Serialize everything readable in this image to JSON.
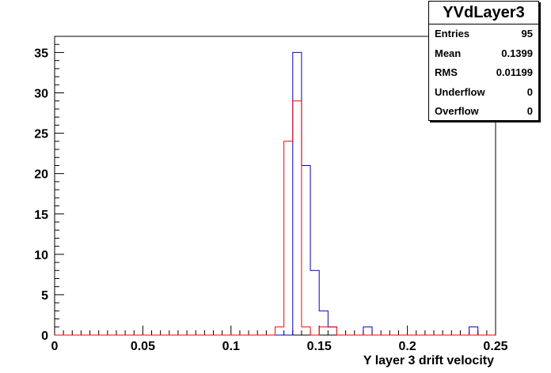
{
  "stats": {
    "title": "YVdLayer3",
    "rows": [
      {
        "label": "Entries",
        "value": "95"
      },
      {
        "label": "Mean",
        "value": "0.1399"
      },
      {
        "label": "RMS",
        "value": "0.01199"
      },
      {
        "label": "Underflow",
        "value": "0"
      },
      {
        "label": "Overflow",
        "value": "0"
      }
    ]
  },
  "chart_data": {
    "type": "histogram",
    "title": "",
    "xlabel": "Y layer 3 drift velocity",
    "ylabel": "",
    "xlim": [
      0,
      0.25
    ],
    "ylim": [
      0,
      37
    ],
    "bin_width": 0.005,
    "x_ticks": [
      "0",
      "0.05",
      "0.1",
      "0.15",
      "0.2",
      "0.25"
    ],
    "y_ticks": [
      "0",
      "5",
      "10",
      "15",
      "20",
      "25",
      "30",
      "35"
    ],
    "grid": false,
    "series": [
      {
        "color": "#0000cc",
        "bins": [
          {
            "x0": 0.135,
            "x1": 0.14,
            "y": 35
          },
          {
            "x0": 0.14,
            "x1": 0.145,
            "y": 21
          },
          {
            "x0": 0.145,
            "x1": 0.15,
            "y": 8
          },
          {
            "x0": 0.15,
            "x1": 0.155,
            "y": 3
          },
          {
            "x0": 0.155,
            "x1": 0.16,
            "y": 1
          },
          {
            "x0": 0.175,
            "x1": 0.18,
            "y": 1
          },
          {
            "x0": 0.235,
            "x1": 0.24,
            "y": 1
          }
        ]
      },
      {
        "color": "#ff0000",
        "bins": [
          {
            "x0": 0.125,
            "x1": 0.13,
            "y": 1
          },
          {
            "x0": 0.13,
            "x1": 0.135,
            "y": 24
          },
          {
            "x0": 0.135,
            "x1": 0.14,
            "y": 29
          },
          {
            "x0": 0.14,
            "x1": 0.145,
            "y": 1
          },
          {
            "x0": 0.15,
            "x1": 0.155,
            "y": 1
          },
          {
            "x0": 0.155,
            "x1": 0.16,
            "y": 1
          }
        ]
      }
    ]
  }
}
